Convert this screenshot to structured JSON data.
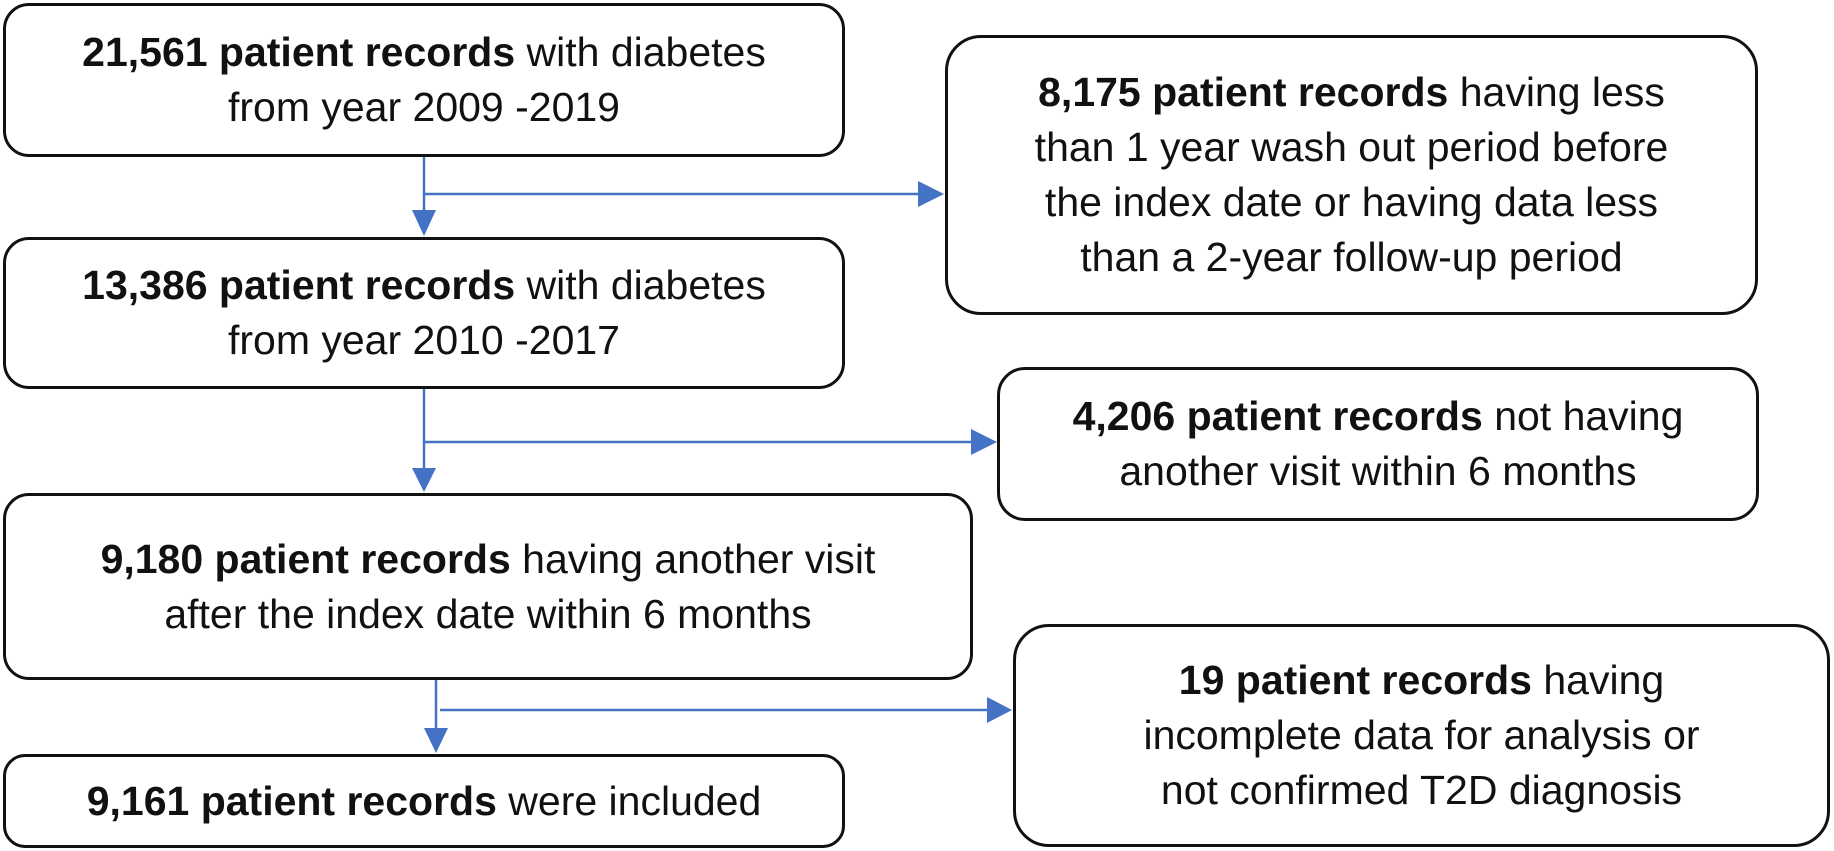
{
  "steps": [
    {
      "num": "21,561 patient records",
      "l1": "with diabetes",
      "l2": "from year 2009 -2019"
    },
    {
      "num": "13,386 patient records",
      "l1": "with diabetes",
      "l2": "from year 2010 -2017"
    },
    {
      "num": "9,180 patient records",
      "l1": "having another visit",
      "l2": "after the index date within 6 months"
    },
    {
      "num": "9,161 patient records",
      "l1": "were included"
    }
  ],
  "exclusions": [
    {
      "num": "8,175 patient records",
      "l1": "having less",
      "l2": "than 1 year wash out period before",
      "l3": "the index date or having data less",
      "l4": "than a 2-year follow-up period"
    },
    {
      "num": "4,206 patient records",
      "l1": "not having",
      "l2": "another visit within 6 months"
    },
    {
      "num": "19 patient records",
      "l1": "having",
      "l2": "incomplete data for analysis or",
      "l3": "not confirmed T2D diagnosis"
    }
  ],
  "colors": {
    "arrow": "#4472C4",
    "border": "#111111"
  }
}
